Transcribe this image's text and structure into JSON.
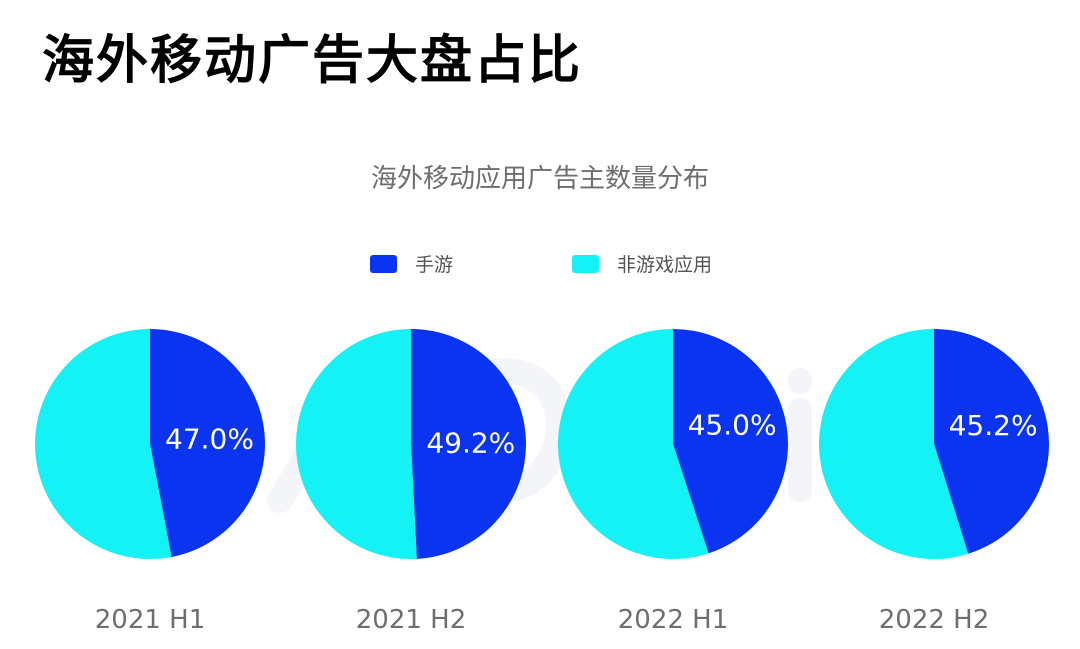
{
  "page": {
    "title": "海外移动广告大盘占比"
  },
  "colors": {
    "mobile_games": "#0a34f0",
    "non_game_apps": "#14f2f5",
    "title_text": "#000000",
    "axis_text": "#6e6e6e"
  },
  "chart_data": {
    "type": "pie",
    "title": "海外移动应用广告主数量分布",
    "legend_position": "top-center",
    "categories": [
      "2021 H1",
      "2021 H2",
      "2022 H1",
      "2022 H2"
    ],
    "series": [
      {
        "name": "手游",
        "values": [
          47.0,
          49.2,
          45.0,
          45.2
        ]
      },
      {
        "name": "非游戏应用",
        "values": [
          53.0,
          50.8,
          55.0,
          54.8
        ]
      }
    ],
    "labels": [
      "47.0%",
      "49.2%",
      "45.0%",
      "45.2%"
    ]
  }
}
